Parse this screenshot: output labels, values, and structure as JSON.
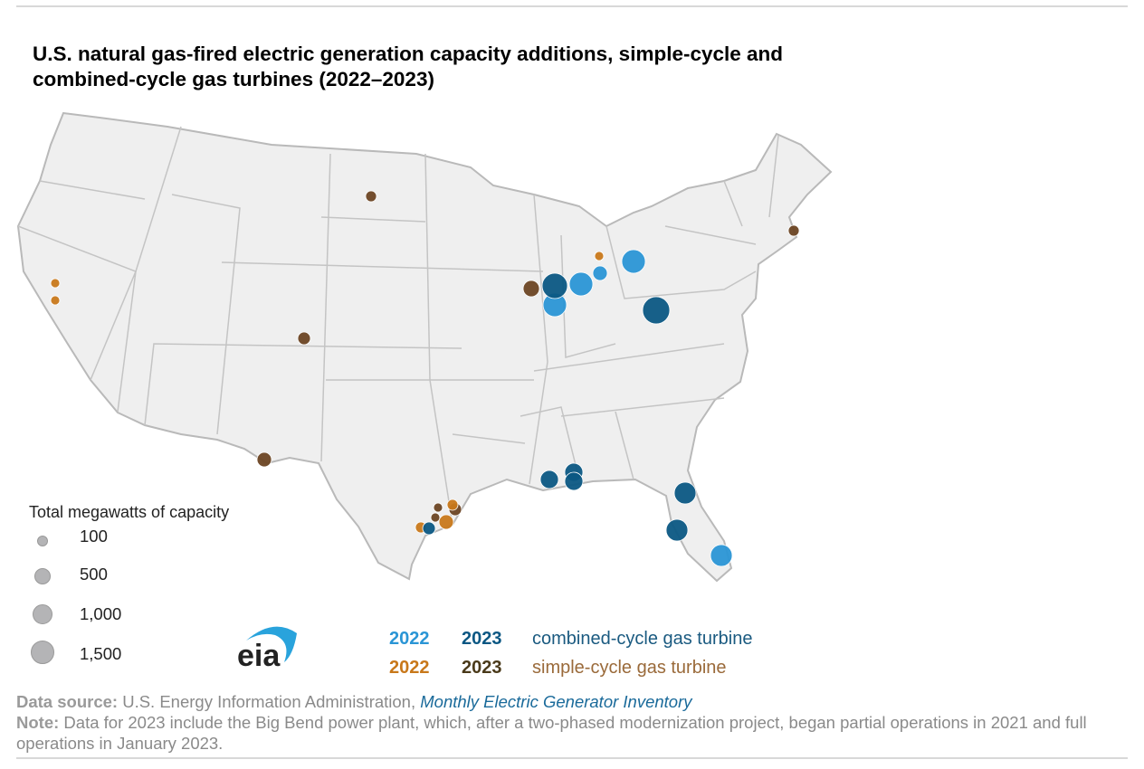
{
  "title": "U.S. natural gas-fired electric generation capacity additions, simple-cycle and combined-cycle gas turbines (2022–2023)",
  "colors": {
    "cc_2022": "#2a95d5",
    "cc_2023": "#0b5783",
    "sc_2022": "#c8781a",
    "sc_2023": "#6b4423",
    "land": "#efefef",
    "border": "#b9b9b9"
  },
  "size_legend": {
    "title": "Total megawatts of capacity",
    "items": [
      {
        "label": "100",
        "mw": 100
      },
      {
        "label": "500",
        "mw": 500
      },
      {
        "label": "1,000",
        "mw": 1000
      },
      {
        "label": "1,500",
        "mw": 1500
      }
    ]
  },
  "type_legend": [
    {
      "year_a": "2022",
      "year_b": "2023",
      "label": "combined-cycle gas turbine"
    },
    {
      "year_a": "2022",
      "year_b": "2023",
      "label": "simple-cycle gas turbine"
    }
  ],
  "logo_text": "eia",
  "plants": [
    {
      "state": "ND",
      "type": "simple-cycle",
      "year": 2023
    },
    {
      "state": "MA",
      "type": "simple-cycle",
      "year": 2023
    },
    {
      "state": "CO",
      "type": "simple-cycle",
      "year": 2023
    },
    {
      "state": "TX",
      "type": "simple-cycle",
      "year": 2023
    },
    {
      "state": "IL",
      "type": "simple-cycle",
      "year": 2023
    },
    {
      "state": "TX",
      "type": "simple-cycle",
      "year": 2023
    },
    {
      "state": "TX",
      "type": "simple-cycle",
      "year": 2023
    },
    {
      "state": "TX",
      "type": "simple-cycle",
      "year": 2023
    },
    {
      "state": "CA",
      "type": "simple-cycle",
      "year": 2022
    },
    {
      "state": "CA",
      "type": "simple-cycle",
      "year": 2022
    },
    {
      "state": "MI",
      "type": "simple-cycle",
      "year": 2022
    },
    {
      "state": "TX",
      "type": "simple-cycle",
      "year": 2022
    },
    {
      "state": "TX",
      "type": "simple-cycle",
      "year": 2022
    },
    {
      "state": "TX",
      "type": "simple-cycle",
      "year": 2022
    },
    {
      "state": "MI",
      "type": "combined-cycle",
      "year": 2022
    },
    {
      "state": "IN",
      "type": "combined-cycle",
      "year": 2022
    },
    {
      "state": "MI",
      "type": "combined-cycle",
      "year": 2022
    },
    {
      "state": "IL",
      "type": "combined-cycle",
      "year": 2022
    },
    {
      "state": "FL",
      "type": "combined-cycle",
      "year": 2022
    },
    {
      "state": "IL",
      "type": "combined-cycle",
      "year": 2023
    },
    {
      "state": "OH",
      "type": "combined-cycle",
      "year": 2023
    },
    {
      "state": "LA",
      "type": "combined-cycle",
      "year": 2023
    },
    {
      "state": "MS",
      "type": "combined-cycle",
      "year": 2023
    },
    {
      "state": "MS",
      "type": "combined-cycle",
      "year": 2023
    },
    {
      "state": "FL",
      "type": "combined-cycle",
      "year": 2023
    },
    {
      "state": "FL",
      "type": "combined-cycle",
      "year": 2023
    },
    {
      "state": "TX",
      "type": "combined-cycle",
      "year": 2023
    }
  ],
  "footer": {
    "source_label": "Data source:",
    "source_text": "U.S. Energy Information Administration,",
    "source_title": "Monthly Electric Generator Inventory",
    "note_label": "Note:",
    "note_text": "Data for 2023 include the Big Bend power plant, which, after a two-phased modernization project, began partial operations in 2021 and full operations in January 2023."
  }
}
